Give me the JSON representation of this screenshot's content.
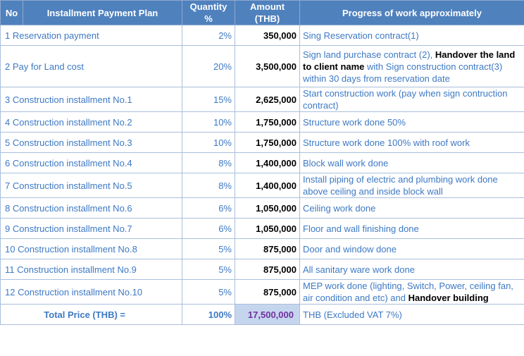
{
  "headers": {
    "no": "No",
    "plan": "Installment Payment Plan",
    "qty": "Quantity %",
    "amount": "Amount (THB)",
    "progress": "Progress of work approximately"
  },
  "rows": [
    {
      "label": "1 Reservation payment",
      "qty": "2%",
      "amount": "350,000",
      "p1": "Sing Reservation contract(1)"
    },
    {
      "label": "2 Pay for Land cost",
      "qty": "20%",
      "amount": "3,500,000",
      "p1": "Sign land purchase contract (2), ",
      "p2": "Handover the land to client name",
      "p3": " with Sign construction contract(3) within 30 days from reservation date"
    },
    {
      "label": "3 Construction installment No.1",
      "qty": "15%",
      "amount": "2,625,000",
      "p1": "Start construction work (pay when sign contruction contract)"
    },
    {
      "label": "4 Construction installment No.2",
      "qty": "10%",
      "amount": "1,750,000",
      "p1": "Structure work done 50%"
    },
    {
      "label": "5 Construction installment No.3",
      "qty": "10%",
      "amount": "1,750,000",
      "p1": "Structure work done 100% with roof work"
    },
    {
      "label": "6 Construction installment No.4",
      "qty": "8%",
      "amount": "1,400,000",
      "p1": "Block wall work done"
    },
    {
      "label": "7 Construction installment No.5",
      "qty": "8%",
      "amount": "1,400,000",
      "p1": "Install piping of electric and plumbing work done above ceiling and inside block wall"
    },
    {
      "label": "8 Construction installment No.6",
      "qty": "6%",
      "amount": "1,050,000",
      "p1": "Ceiling work done"
    },
    {
      "label": "9 Construction installment No.7",
      "qty": "6%",
      "amount": "1,050,000",
      "p1": "Floor and wall finishing done"
    },
    {
      "label": "10 Construction installment No.8",
      "qty": "5%",
      "amount": "875,000",
      "p1": "Door and window done"
    },
    {
      "label": "11 Construction installment No.9",
      "qty": "5%",
      "amount": "875,000",
      "p1": "All sanitary ware work done"
    },
    {
      "label": "12 Construction installment No.10",
      "qty": "5%",
      "amount": "875,000",
      "p1": "MEP work done (lighting, Switch, Power, ceiling fan, air condition and etc) and ",
      "p2": "Handover building"
    }
  ],
  "total": {
    "label": "Total Price (THB) =",
    "qty": "100%",
    "amount": "17,500,000",
    "note": "THB (Excluded VAT 7%)"
  }
}
